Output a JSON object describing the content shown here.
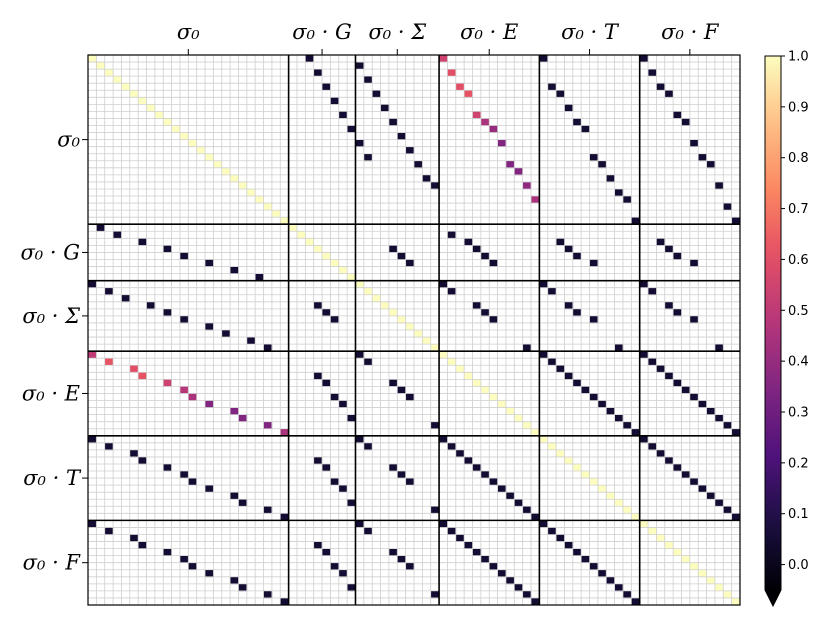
{
  "chart_data": {
    "type": "heatmap",
    "title": "",
    "xlabel": "",
    "ylabel": "",
    "blocks": [
      {
        "name": "sigma0",
        "label": "σ₀",
        "size": 24
      },
      {
        "name": "sigma0_G",
        "label": "σ₀ · G",
        "size": 8
      },
      {
        "name": "sigma0_Sigma",
        "label": "σ₀ · Σ",
        "size": 10
      },
      {
        "name": "sigma0_E",
        "label": "σ₀ · E",
        "size": 12
      },
      {
        "name": "sigma0_T",
        "label": "σ₀ · T",
        "size": 12
      },
      {
        "name": "sigma0_F",
        "label": "σ₀ · F",
        "size": 12
      }
    ],
    "x_tick_labels": [
      "σ₀",
      "σ₀ · G",
      "σ₀ · Σ",
      "σ₀ · E",
      "σ₀ · T",
      "σ₀ · F"
    ],
    "y_tick_labels": [
      "σ₀",
      "σ₀ · G",
      "σ₀ · Σ",
      "σ₀ · E",
      "σ₀ · T",
      "σ₀ · F"
    ],
    "grid": true,
    "colormap": "magma",
    "colorbar": {
      "vmin": -0.05,
      "vmax": 1.0,
      "ticks": [
        "0.0",
        "0.1",
        "0.2",
        "0.3",
        "0.4",
        "0.5",
        "0.6",
        "0.7",
        "0.8",
        "0.9",
        "1.0"
      ],
      "extend": "min",
      "placement": "right"
    },
    "diagonal_value": 1.0,
    "value_dark": 0.05,
    "cells": [
      {
        "r": 0,
        "c": 26,
        "v": 0.05
      },
      {
        "r": 2,
        "c": 27,
        "v": 0.05
      },
      {
        "r": 4,
        "c": 28,
        "v": 0.05
      },
      {
        "r": 6,
        "c": 29,
        "v": 0.05
      },
      {
        "r": 8,
        "c": 30,
        "v": 0.05
      },
      {
        "r": 10,
        "c": 31,
        "v": 0.05
      },
      {
        "r": 12,
        "c": 32,
        "v": 0.05
      },
      {
        "r": 14,
        "c": 33,
        "v": 0.05
      },
      {
        "r": 1,
        "c": 32,
        "v": 0.05
      },
      {
        "r": 3,
        "c": 33,
        "v": 0.05
      },
      {
        "r": 5,
        "c": 34,
        "v": 0.05
      },
      {
        "r": 7,
        "c": 35,
        "v": 0.05
      },
      {
        "r": 9,
        "c": 36,
        "v": 0.05
      },
      {
        "r": 11,
        "c": 37,
        "v": 0.05
      },
      {
        "r": 13,
        "c": 38,
        "v": 0.05
      },
      {
        "r": 15,
        "c": 39,
        "v": 0.05
      },
      {
        "r": 17,
        "c": 40,
        "v": 0.05
      },
      {
        "r": 18,
        "c": 41,
        "v": 0.05
      },
      {
        "r": 0,
        "c": 42,
        "v": 0.55
      },
      {
        "r": 2,
        "c": 43,
        "v": 0.6
      },
      {
        "r": 4,
        "c": 44,
        "v": 0.6
      },
      {
        "r": 5,
        "c": 45,
        "v": 0.62
      },
      {
        "r": 8,
        "c": 46,
        "v": 0.55
      },
      {
        "r": 9,
        "c": 47,
        "v": 0.45
      },
      {
        "r": 10,
        "c": 48,
        "v": 0.4
      },
      {
        "r": 12,
        "c": 49,
        "v": 0.35
      },
      {
        "r": 15,
        "c": 50,
        "v": 0.35
      },
      {
        "r": 16,
        "c": 51,
        "v": 0.35
      },
      {
        "r": 18,
        "c": 52,
        "v": 0.38
      },
      {
        "r": 20,
        "c": 53,
        "v": 0.45
      },
      {
        "r": 0,
        "c": 54,
        "v": 0.05
      },
      {
        "r": 4,
        "c": 55,
        "v": 0.05
      },
      {
        "r": 5,
        "c": 56,
        "v": 0.05
      },
      {
        "r": 7,
        "c": 57,
        "v": 0.05
      },
      {
        "r": 9,
        "c": 58,
        "v": 0.05
      },
      {
        "r": 10,
        "c": 59,
        "v": 0.05
      },
      {
        "r": 14,
        "c": 60,
        "v": 0.05
      },
      {
        "r": 15,
        "c": 61,
        "v": 0.05
      },
      {
        "r": 17,
        "c": 62,
        "v": 0.05
      },
      {
        "r": 19,
        "c": 63,
        "v": 0.05
      },
      {
        "r": 20,
        "c": 64,
        "v": 0.05
      },
      {
        "r": 23,
        "c": 65,
        "v": 0.05
      },
      {
        "r": 0,
        "c": 66,
        "v": 0.05
      },
      {
        "r": 2,
        "c": 67,
        "v": 0.05
      },
      {
        "r": 4,
        "c": 68,
        "v": 0.05
      },
      {
        "r": 5,
        "c": 69,
        "v": 0.05
      },
      {
        "r": 8,
        "c": 70,
        "v": 0.05
      },
      {
        "r": 9,
        "c": 71,
        "v": 0.05
      },
      {
        "r": 12,
        "c": 72,
        "v": 0.05
      },
      {
        "r": 14,
        "c": 73,
        "v": 0.05
      },
      {
        "r": 15,
        "c": 74,
        "v": 0.05
      },
      {
        "r": 18,
        "c": 75,
        "v": 0.05
      },
      {
        "r": 21,
        "c": 76,
        "v": 0.05
      },
      {
        "r": 23,
        "c": 77,
        "v": 0.05
      },
      {
        "r": 24,
        "c": 1,
        "v": 0.05
      },
      {
        "r": 25,
        "c": 3,
        "v": 0.05
      },
      {
        "r": 26,
        "c": 6,
        "v": 0.05
      },
      {
        "r": 27,
        "c": 9,
        "v": 0.05
      },
      {
        "r": 28,
        "c": 11,
        "v": 0.05
      },
      {
        "r": 29,
        "c": 14,
        "v": 0.05
      },
      {
        "r": 30,
        "c": 17,
        "v": 0.05
      },
      {
        "r": 31,
        "c": 20,
        "v": 0.05
      },
      {
        "r": 27,
        "c": 36,
        "v": 0.05
      },
      {
        "r": 28,
        "c": 37,
        "v": 0.05
      },
      {
        "r": 29,
        "c": 38,
        "v": 0.05
      },
      {
        "r": 25,
        "c": 43,
        "v": 0.05
      },
      {
        "r": 26,
        "c": 45,
        "v": 0.05
      },
      {
        "r": 27,
        "c": 46,
        "v": 0.05
      },
      {
        "r": 28,
        "c": 47,
        "v": 0.05
      },
      {
        "r": 29,
        "c": 48,
        "v": 0.05
      },
      {
        "r": 26,
        "c": 56,
        "v": 0.05
      },
      {
        "r": 27,
        "c": 57,
        "v": 0.05
      },
      {
        "r": 28,
        "c": 58,
        "v": 0.05
      },
      {
        "r": 29,
        "c": 60,
        "v": 0.05
      },
      {
        "r": 26,
        "c": 68,
        "v": 0.05
      },
      {
        "r": 27,
        "c": 69,
        "v": 0.05
      },
      {
        "r": 28,
        "c": 70,
        "v": 0.05
      },
      {
        "r": 29,
        "c": 72,
        "v": 0.05
      },
      {
        "r": 32,
        "c": 0,
        "v": 0.05
      },
      {
        "r": 33,
        "c": 2,
        "v": 0.05
      },
      {
        "r": 34,
        "c": 4,
        "v": 0.05
      },
      {
        "r": 35,
        "c": 7,
        "v": 0.05
      },
      {
        "r": 36,
        "c": 9,
        "v": 0.05
      },
      {
        "r": 37,
        "c": 11,
        "v": 0.05
      },
      {
        "r": 38,
        "c": 14,
        "v": 0.05
      },
      {
        "r": 39,
        "c": 16,
        "v": 0.05
      },
      {
        "r": 40,
        "c": 19,
        "v": 0.05
      },
      {
        "r": 41,
        "c": 21,
        "v": 0.05
      },
      {
        "r": 35,
        "c": 27,
        "v": 0.05
      },
      {
        "r": 36,
        "c": 28,
        "v": 0.05
      },
      {
        "r": 37,
        "c": 29,
        "v": 0.05
      },
      {
        "r": 32,
        "c": 42,
        "v": 0.05
      },
      {
        "r": 33,
        "c": 43,
        "v": 0.05
      },
      {
        "r": 35,
        "c": 46,
        "v": 0.05
      },
      {
        "r": 36,
        "c": 47,
        "v": 0.05
      },
      {
        "r": 37,
        "c": 48,
        "v": 0.05
      },
      {
        "r": 41,
        "c": 52,
        "v": 0.05
      },
      {
        "r": 32,
        "c": 54,
        "v": 0.05
      },
      {
        "r": 33,
        "c": 55,
        "v": 0.05
      },
      {
        "r": 35,
        "c": 57,
        "v": 0.05
      },
      {
        "r": 36,
        "c": 58,
        "v": 0.05
      },
      {
        "r": 37,
        "c": 60,
        "v": 0.05
      },
      {
        "r": 41,
        "c": 63,
        "v": 0.05
      },
      {
        "r": 32,
        "c": 66,
        "v": 0.05
      },
      {
        "r": 33,
        "c": 67,
        "v": 0.05
      },
      {
        "r": 35,
        "c": 69,
        "v": 0.05
      },
      {
        "r": 36,
        "c": 70,
        "v": 0.05
      },
      {
        "r": 37,
        "c": 72,
        "v": 0.05
      },
      {
        "r": 41,
        "c": 75,
        "v": 0.05
      },
      {
        "r": 42,
        "c": 0,
        "v": 0.5
      },
      {
        "r": 43,
        "c": 2,
        "v": 0.62
      },
      {
        "r": 44,
        "c": 5,
        "v": 0.6
      },
      {
        "r": 45,
        "c": 6,
        "v": 0.62
      },
      {
        "r": 46,
        "c": 9,
        "v": 0.55
      },
      {
        "r": 47,
        "c": 11,
        "v": 0.48
      },
      {
        "r": 48,
        "c": 12,
        "v": 0.45
      },
      {
        "r": 49,
        "c": 14,
        "v": 0.35
      },
      {
        "r": 50,
        "c": 17,
        "v": 0.35
      },
      {
        "r": 51,
        "c": 18,
        "v": 0.35
      },
      {
        "r": 52,
        "c": 21,
        "v": 0.35
      },
      {
        "r": 53,
        "c": 23,
        "v": 0.45
      },
      {
        "r": 45,
        "c": 27,
        "v": 0.05
      },
      {
        "r": 46,
        "c": 28,
        "v": 0.05
      },
      {
        "r": 48,
        "c": 29,
        "v": 0.05
      },
      {
        "r": 49,
        "c": 30,
        "v": 0.05
      },
      {
        "r": 51,
        "c": 31,
        "v": 0.05
      },
      {
        "r": 42,
        "c": 32,
        "v": 0.05
      },
      {
        "r": 43,
        "c": 33,
        "v": 0.05
      },
      {
        "r": 46,
        "c": 36,
        "v": 0.05
      },
      {
        "r": 47,
        "c": 37,
        "v": 0.05
      },
      {
        "r": 48,
        "c": 38,
        "v": 0.05
      },
      {
        "r": 52,
        "c": 41,
        "v": 0.05
      },
      {
        "r": 42,
        "c": 54,
        "v": 0.05
      },
      {
        "r": 43,
        "c": 55,
        "v": 0.05
      },
      {
        "r": 44,
        "c": 56,
        "v": 0.05
      },
      {
        "r": 45,
        "c": 57,
        "v": 0.05
      },
      {
        "r": 46,
        "c": 58,
        "v": 0.05
      },
      {
        "r": 47,
        "c": 59,
        "v": 0.05
      },
      {
        "r": 48,
        "c": 60,
        "v": 0.05
      },
      {
        "r": 49,
        "c": 61,
        "v": 0.05
      },
      {
        "r": 50,
        "c": 62,
        "v": 0.05
      },
      {
        "r": 51,
        "c": 63,
        "v": 0.05
      },
      {
        "r": 52,
        "c": 64,
        "v": 0.05
      },
      {
        "r": 53,
        "c": 65,
        "v": 0.05
      },
      {
        "r": 42,
        "c": 66,
        "v": 0.05
      },
      {
        "r": 43,
        "c": 67,
        "v": 0.05
      },
      {
        "r": 44,
        "c": 68,
        "v": 0.05
      },
      {
        "r": 45,
        "c": 69,
        "v": 0.05
      },
      {
        "r": 46,
        "c": 70,
        "v": 0.05
      },
      {
        "r": 47,
        "c": 71,
        "v": 0.05
      },
      {
        "r": 48,
        "c": 72,
        "v": 0.05
      },
      {
        "r": 49,
        "c": 73,
        "v": 0.05
      },
      {
        "r": 50,
        "c": 74,
        "v": 0.05
      },
      {
        "r": 51,
        "c": 75,
        "v": 0.05
      },
      {
        "r": 52,
        "c": 76,
        "v": 0.05
      },
      {
        "r": 53,
        "c": 77,
        "v": 0.05
      },
      {
        "r": 54,
        "c": 0,
        "v": 0.05
      },
      {
        "r": 55,
        "c": 2,
        "v": 0.05
      },
      {
        "r": 56,
        "c": 5,
        "v": 0.05
      },
      {
        "r": 57,
        "c": 6,
        "v": 0.05
      },
      {
        "r": 58,
        "c": 9,
        "v": 0.05
      },
      {
        "r": 59,
        "c": 11,
        "v": 0.05
      },
      {
        "r": 60,
        "c": 12,
        "v": 0.05
      },
      {
        "r": 61,
        "c": 14,
        "v": 0.05
      },
      {
        "r": 62,
        "c": 17,
        "v": 0.05
      },
      {
        "r": 63,
        "c": 18,
        "v": 0.05
      },
      {
        "r": 64,
        "c": 21,
        "v": 0.05
      },
      {
        "r": 65,
        "c": 23,
        "v": 0.05
      },
      {
        "r": 57,
        "c": 27,
        "v": 0.05
      },
      {
        "r": 58,
        "c": 28,
        "v": 0.05
      },
      {
        "r": 60,
        "c": 29,
        "v": 0.05
      },
      {
        "r": 61,
        "c": 30,
        "v": 0.05
      },
      {
        "r": 63,
        "c": 31,
        "v": 0.05
      },
      {
        "r": 54,
        "c": 32,
        "v": 0.05
      },
      {
        "r": 55,
        "c": 33,
        "v": 0.05
      },
      {
        "r": 58,
        "c": 36,
        "v": 0.05
      },
      {
        "r": 59,
        "c": 37,
        "v": 0.05
      },
      {
        "r": 60,
        "c": 38,
        "v": 0.05
      },
      {
        "r": 64,
        "c": 41,
        "v": 0.05
      },
      {
        "r": 54,
        "c": 42,
        "v": 0.05
      },
      {
        "r": 55,
        "c": 43,
        "v": 0.05
      },
      {
        "r": 56,
        "c": 44,
        "v": 0.05
      },
      {
        "r": 57,
        "c": 45,
        "v": 0.05
      },
      {
        "r": 58,
        "c": 46,
        "v": 0.05
      },
      {
        "r": 59,
        "c": 47,
        "v": 0.05
      },
      {
        "r": 60,
        "c": 48,
        "v": 0.05
      },
      {
        "r": 61,
        "c": 49,
        "v": 0.05
      },
      {
        "r": 62,
        "c": 50,
        "v": 0.05
      },
      {
        "r": 63,
        "c": 51,
        "v": 0.05
      },
      {
        "r": 64,
        "c": 52,
        "v": 0.05
      },
      {
        "r": 65,
        "c": 53,
        "v": 0.05
      },
      {
        "r": 54,
        "c": 66,
        "v": 0.05
      },
      {
        "r": 55,
        "c": 67,
        "v": 0.05
      },
      {
        "r": 56,
        "c": 68,
        "v": 0.05
      },
      {
        "r": 57,
        "c": 69,
        "v": 0.05
      },
      {
        "r": 58,
        "c": 70,
        "v": 0.05
      },
      {
        "r": 59,
        "c": 71,
        "v": 0.05
      },
      {
        "r": 60,
        "c": 72,
        "v": 0.05
      },
      {
        "r": 61,
        "c": 73,
        "v": 0.05
      },
      {
        "r": 62,
        "c": 74,
        "v": 0.05
      },
      {
        "r": 63,
        "c": 75,
        "v": 0.05
      },
      {
        "r": 64,
        "c": 76,
        "v": 0.05
      },
      {
        "r": 65,
        "c": 77,
        "v": 0.05
      },
      {
        "r": 66,
        "c": 0,
        "v": 0.05
      },
      {
        "r": 67,
        "c": 2,
        "v": 0.05
      },
      {
        "r": 68,
        "c": 5,
        "v": 0.05
      },
      {
        "r": 69,
        "c": 6,
        "v": 0.05
      },
      {
        "r": 70,
        "c": 9,
        "v": 0.05
      },
      {
        "r": 71,
        "c": 11,
        "v": 0.05
      },
      {
        "r": 72,
        "c": 12,
        "v": 0.05
      },
      {
        "r": 73,
        "c": 14,
        "v": 0.05
      },
      {
        "r": 74,
        "c": 17,
        "v": 0.05
      },
      {
        "r": 75,
        "c": 18,
        "v": 0.05
      },
      {
        "r": 76,
        "c": 21,
        "v": 0.05
      },
      {
        "r": 77,
        "c": 23,
        "v": 0.05
      },
      {
        "r": 69,
        "c": 27,
        "v": 0.05
      },
      {
        "r": 70,
        "c": 28,
        "v": 0.05
      },
      {
        "r": 72,
        "c": 29,
        "v": 0.05
      },
      {
        "r": 73,
        "c": 30,
        "v": 0.05
      },
      {
        "r": 75,
        "c": 31,
        "v": 0.05
      },
      {
        "r": 66,
        "c": 32,
        "v": 0.05
      },
      {
        "r": 67,
        "c": 33,
        "v": 0.05
      },
      {
        "r": 70,
        "c": 36,
        "v": 0.05
      },
      {
        "r": 71,
        "c": 37,
        "v": 0.05
      },
      {
        "r": 72,
        "c": 38,
        "v": 0.05
      },
      {
        "r": 76,
        "c": 41,
        "v": 0.05
      },
      {
        "r": 66,
        "c": 42,
        "v": 0.05
      },
      {
        "r": 67,
        "c": 43,
        "v": 0.05
      },
      {
        "r": 68,
        "c": 44,
        "v": 0.05
      },
      {
        "r": 69,
        "c": 45,
        "v": 0.05
      },
      {
        "r": 70,
        "c": 46,
        "v": 0.05
      },
      {
        "r": 71,
        "c": 47,
        "v": 0.05
      },
      {
        "r": 72,
        "c": 48,
        "v": 0.05
      },
      {
        "r": 73,
        "c": 49,
        "v": 0.05
      },
      {
        "r": 74,
        "c": 50,
        "v": 0.05
      },
      {
        "r": 75,
        "c": 51,
        "v": 0.05
      },
      {
        "r": 76,
        "c": 52,
        "v": 0.05
      },
      {
        "r": 77,
        "c": 53,
        "v": 0.05
      },
      {
        "r": 66,
        "c": 54,
        "v": 0.05
      },
      {
        "r": 67,
        "c": 55,
        "v": 0.05
      },
      {
        "r": 68,
        "c": 56,
        "v": 0.05
      },
      {
        "r": 69,
        "c": 57,
        "v": 0.05
      },
      {
        "r": 70,
        "c": 58,
        "v": 0.05
      },
      {
        "r": 71,
        "c": 59,
        "v": 0.05
      },
      {
        "r": 72,
        "c": 60,
        "v": 0.05
      },
      {
        "r": 73,
        "c": 61,
        "v": 0.05
      },
      {
        "r": 74,
        "c": 62,
        "v": 0.05
      },
      {
        "r": 75,
        "c": 63,
        "v": 0.05
      },
      {
        "r": 76,
        "c": 64,
        "v": 0.05
      },
      {
        "r": 77,
        "c": 65,
        "v": 0.05
      }
    ]
  }
}
